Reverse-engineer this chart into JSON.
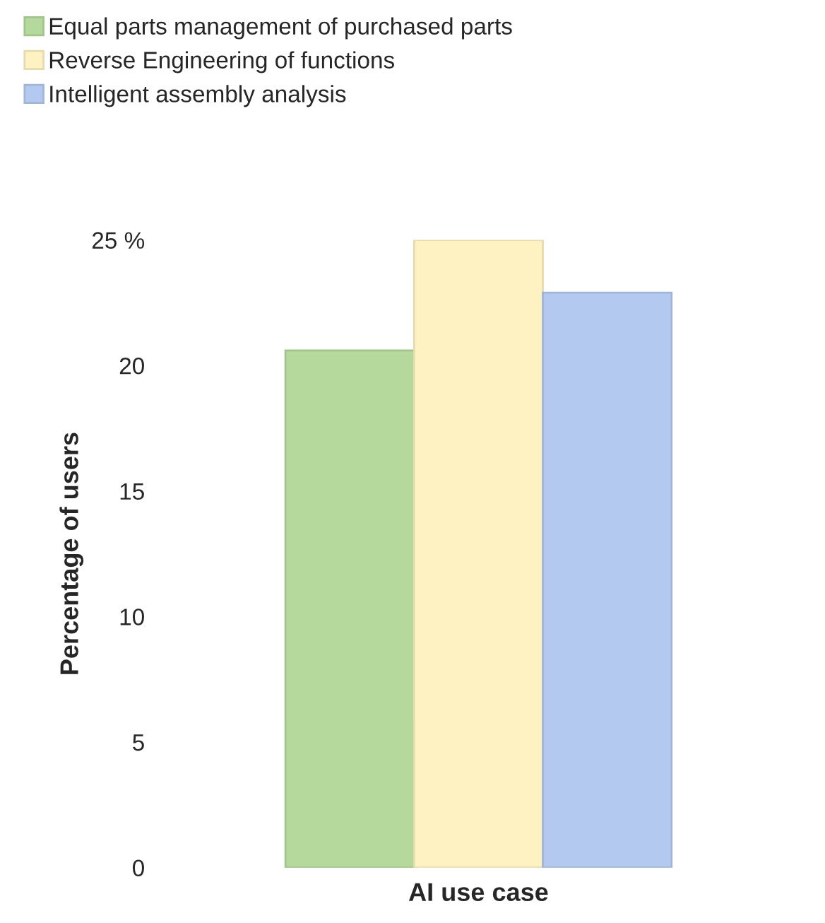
{
  "chart_data": {
    "type": "bar",
    "xlabel": "AI use case",
    "ylabel": "Percentage of users",
    "categories": [
      null
    ],
    "series": [
      {
        "name": "Equal parts management of purchased parts",
        "color": "#b5d99c",
        "values": [
          20.6
        ]
      },
      {
        "name": "Reverse Engineering of functions",
        "color": "#fff2c2",
        "values": [
          25.0
        ]
      },
      {
        "name": "Intelligent assembly analysis",
        "color": "#b4c9ef",
        "values": [
          22.9
        ]
      }
    ],
    "ylim": [
      0,
      25
    ],
    "yticks": [
      0,
      5,
      10,
      15,
      20,
      {
        "value": 25,
        "label": "25 %"
      }
    ],
    "grid": false,
    "legend": "top left"
  }
}
